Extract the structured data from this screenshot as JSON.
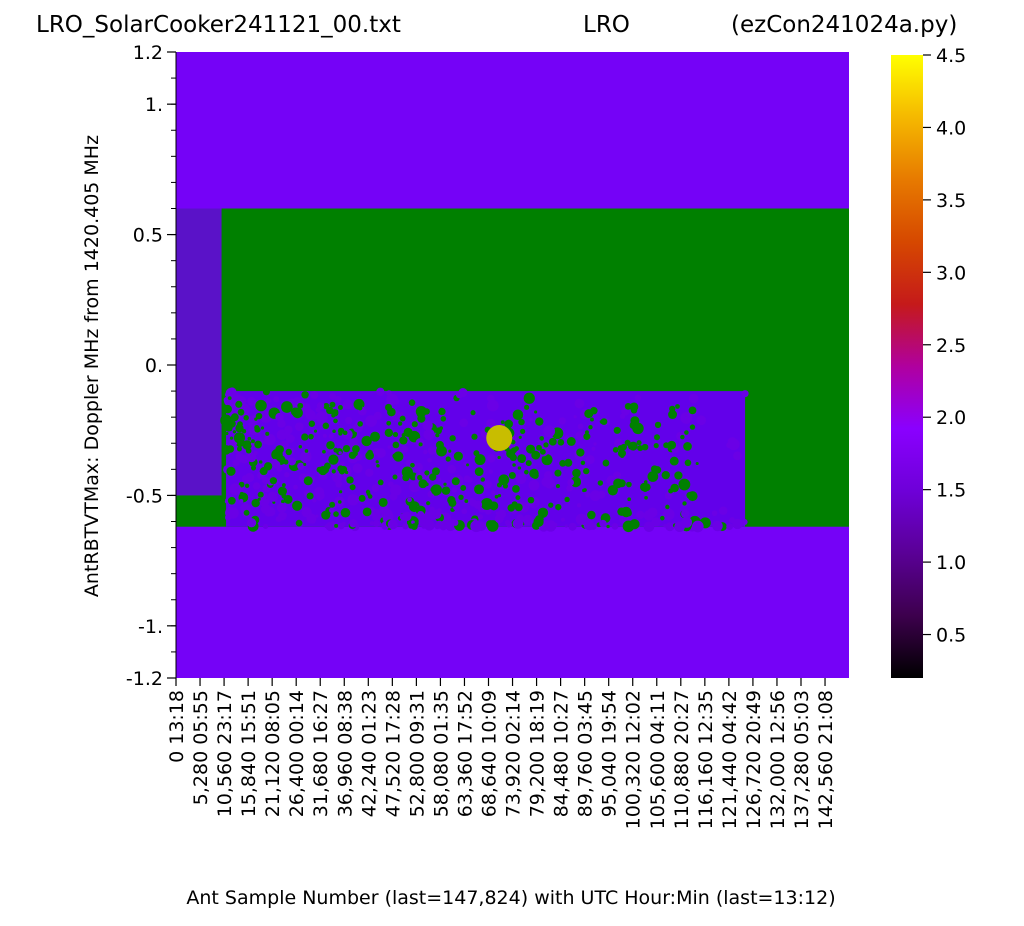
{
  "header": {
    "left": "LRO_SolarCooker241121_00.txt",
    "center": "LRO",
    "right": "(ezCon241024a.py)"
  },
  "chart_data": {
    "type": "heatmap",
    "xlabel": "Ant Sample Number (last=147,824) with UTC Hour:Min (last=13:12)",
    "ylabel": "AntRBTVTMax:   Doppler MHz from 1420.405 MHz",
    "ylim": [
      -1.2,
      1.2
    ],
    "xlim": [
      0,
      147824
    ],
    "y_ticks": [
      {
        "value": 1.2,
        "label": "1.2"
      },
      {
        "value": 1.0,
        "label": "1."
      },
      {
        "value": 0.5,
        "label": "0.5"
      },
      {
        "value": 0.0,
        "label": "0."
      },
      {
        "value": -0.5,
        "label": "-0.5"
      },
      {
        "value": -1.0,
        "label": "-1."
      },
      {
        "value": -1.2,
        "label": "-1.2"
      }
    ],
    "y_minor_step": 0.1,
    "x_ticks": [
      {
        "value": 0,
        "sample": "0",
        "time": "13:18"
      },
      {
        "value": 5280,
        "sample": "5,280",
        "time": "05:55"
      },
      {
        "value": 10560,
        "sample": "10,560",
        "time": "23:17"
      },
      {
        "value": 15840,
        "sample": "15,840",
        "time": "15:51"
      },
      {
        "value": 21120,
        "sample": "21,120",
        "time": "08:05"
      },
      {
        "value": 26400,
        "sample": "26,400",
        "time": "00:14"
      },
      {
        "value": 31680,
        "sample": "31,680",
        "time": "16:27"
      },
      {
        "value": 36960,
        "sample": "36,960",
        "time": "08:38"
      },
      {
        "value": 42240,
        "sample": "42,240",
        "time": "01:23"
      },
      {
        "value": 47520,
        "sample": "47,520",
        "time": "17:28"
      },
      {
        "value": 52800,
        "sample": "52,800",
        "time": "09:31"
      },
      {
        "value": 58080,
        "sample": "58,080",
        "time": "01:35"
      },
      {
        "value": 63360,
        "sample": "63,360",
        "time": "17:52"
      },
      {
        "value": 68640,
        "sample": "68,640",
        "time": "10:09"
      },
      {
        "value": 73920,
        "sample": "73,920",
        "time": "02:14"
      },
      {
        "value": 79200,
        "sample": "79,200",
        "time": "18:19"
      },
      {
        "value": 84480,
        "sample": "84,480",
        "time": "10:27"
      },
      {
        "value": 89760,
        "sample": "89,760",
        "time": "03:45"
      },
      {
        "value": 95040,
        "sample": "95,040",
        "time": "19:54"
      },
      {
        "value": 100320,
        "sample": "100,320",
        "time": "12:02"
      },
      {
        "value": 105600,
        "sample": "105,600",
        "time": "04:11"
      },
      {
        "value": 110880,
        "sample": "110,880",
        "time": "20:27"
      },
      {
        "value": 116160,
        "sample": "116,160",
        "time": "12:35"
      },
      {
        "value": 121440,
        "sample": "121,440",
        "time": "04:42"
      },
      {
        "value": 126720,
        "sample": "126,720",
        "time": "20:49"
      },
      {
        "value": 132000,
        "sample": "132,000",
        "time": "12:56"
      },
      {
        "value": 137280,
        "sample": "137,280",
        "time": "05:03"
      },
      {
        "value": 142560,
        "sample": "142,560",
        "time": "21:08"
      }
    ],
    "colorbar": {
      "colormap": "gnuplot",
      "range": [
        0.2,
        4.5
      ],
      "ticks": [
        {
          "value": 0.5,
          "label": "0.5"
        },
        {
          "value": 1.0,
          "label": "1.0"
        },
        {
          "value": 1.5,
          "label": "1.5"
        },
        {
          "value": 2.0,
          "label": "2.0"
        },
        {
          "value": 2.5,
          "label": "2.5"
        },
        {
          "value": 3.0,
          "label": "3.0"
        },
        {
          "value": 3.5,
          "label": "3.5"
        },
        {
          "value": 4.0,
          "label": "4.0"
        },
        {
          "value": 4.5,
          "label": "4.5"
        }
      ]
    },
    "background_value": 1.1,
    "regions": [
      {
        "name": "mask-region",
        "x0": 10000,
        "x1": 147824,
        "y0": -0.62,
        "y1": 0.6,
        "color": "#008000"
      },
      {
        "name": "early-spectra",
        "x0": 0,
        "x1": 10000,
        "y0": -0.5,
        "y1": 0.6,
        "color": "#5a12c8"
      },
      {
        "name": "early-bottom-band",
        "x0": 0,
        "x1": 10000,
        "y0": -0.62,
        "y1": -0.5,
        "color": "#008000"
      },
      {
        "name": "signal-blobs",
        "x0": 11000,
        "x1": 125000,
        "y0": -0.62,
        "y1": -0.1,
        "color": "#6200ea"
      }
    ],
    "marker": {
      "x": 71000,
      "y": -0.28,
      "color": "#c8bd00"
    }
  }
}
